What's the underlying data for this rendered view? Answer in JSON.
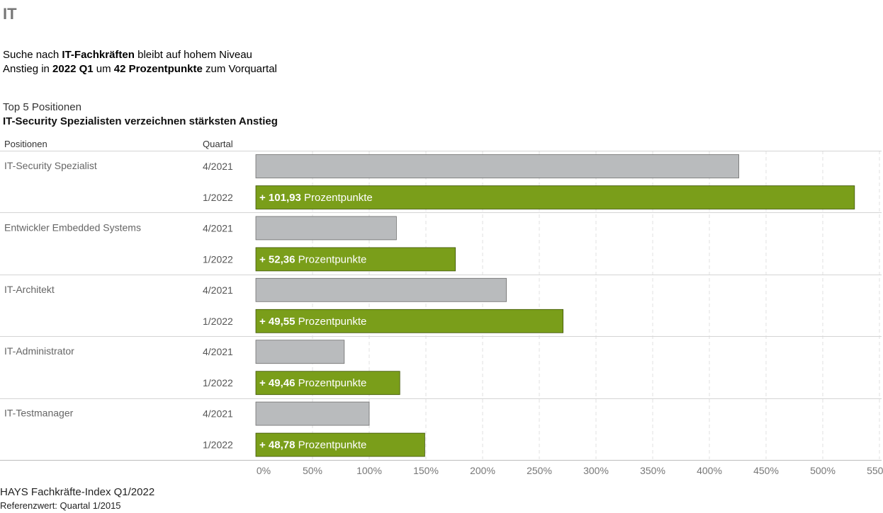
{
  "page": {
    "title": "IT",
    "headline": {
      "line1": [
        "Suche nach ",
        "IT-Fachkräften",
        " bleibt auf hohem Niveau"
      ],
      "line2": [
        "Anstieg in ",
        "2022 Q1",
        " um ",
        "42 Prozentpunkte",
        " zum Vorquartal"
      ]
    },
    "subtitle_top": "Top 5 Positionen",
    "subtitle_main": "IT-Security Spezialisten verzeichnen stärksten Anstieg",
    "column_headers": {
      "positions": "Positionen",
      "quarter": "Quartal"
    },
    "footer": {
      "line1": "HAYS Fachkräfte-Index Q1/2022",
      "line2": "Referenzwert: Quartal 1/2015"
    }
  },
  "chart_data": {
    "type": "bar",
    "orientation": "horizontal",
    "categories": [
      "IT-Security Spezialist",
      "Entwickler Embedded Systems",
      "IT-Architekt",
      "IT-Administrator",
      "IT-Testmanager"
    ],
    "series": [
      {
        "name": "4/2021",
        "color": "#b9bbbd",
        "values": [
          426,
          124,
          221,
          78,
          100
        ]
      },
      {
        "name": "1/2022",
        "color": "#7a9e1a",
        "values": [
          528,
          176,
          271,
          127,
          149
        ]
      }
    ],
    "bar_labels": {
      "prefix": "+ ",
      "values": [
        "101,93",
        "52,36",
        "49,55",
        "49,46",
        "48,78"
      ],
      "suffix": " Prozentpunkte"
    },
    "xlim": [
      0,
      550
    ],
    "xticks": [
      "0%",
      "50%",
      "100%",
      "150%",
      "200%",
      "250%",
      "300%",
      "350%",
      "400%",
      "450%",
      "500%",
      "550%"
    ],
    "xtick_values": [
      0,
      50,
      100,
      150,
      200,
      250,
      300,
      350,
      400,
      450,
      500,
      550
    ],
    "grid": true,
    "colors": {
      "previous": "#b9bbbd",
      "current": "#7a9e1a"
    }
  }
}
